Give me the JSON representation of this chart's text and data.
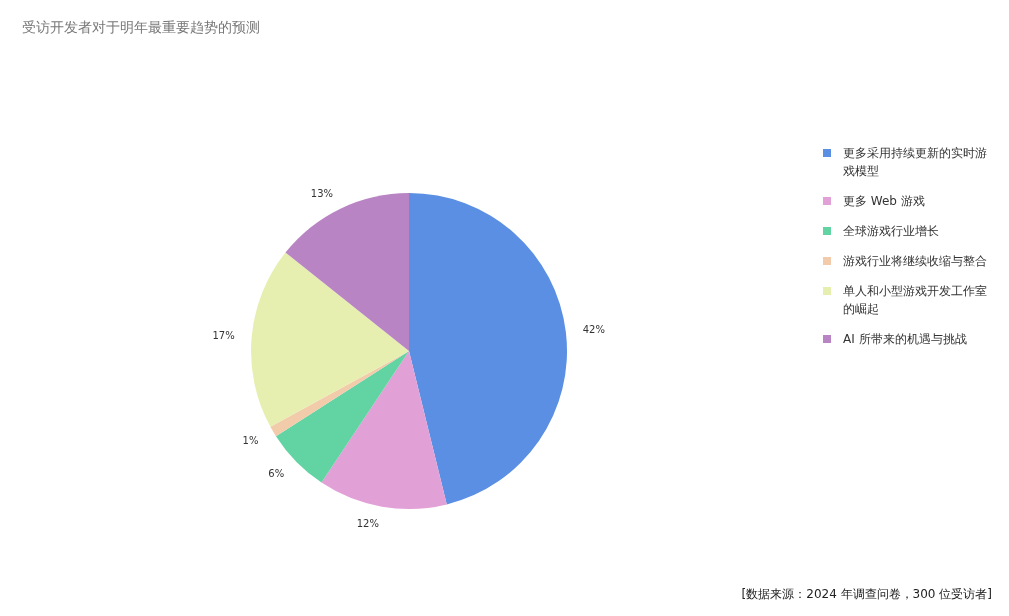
{
  "chart_data": {
    "type": "pie",
    "title": "受访开发者对于明年最重要趋势的预测",
    "categories": [
      "更多采用持续更新的实时游戏模型",
      "更多 Web 游戏",
      "全球游戏行业增长",
      "游戏行业将继续收缩与整合",
      "单人和小型游戏开发工作室的崛起",
      "AI 所带来的机遇与挑战"
    ],
    "values": [
      42,
      12,
      6,
      1,
      17,
      13
    ],
    "value_labels": [
      "42%",
      "12%",
      "6%",
      "1%",
      "17%",
      "13%"
    ],
    "colors": [
      "#5b8fe3",
      "#e1a0d6",
      "#62d3a3",
      "#f2cbaa",
      "#e7efb0",
      "#b884c3"
    ],
    "legend": "right",
    "annotations": [
      "[数据来源：2024 年调查问卷，300 位受访者]"
    ]
  }
}
